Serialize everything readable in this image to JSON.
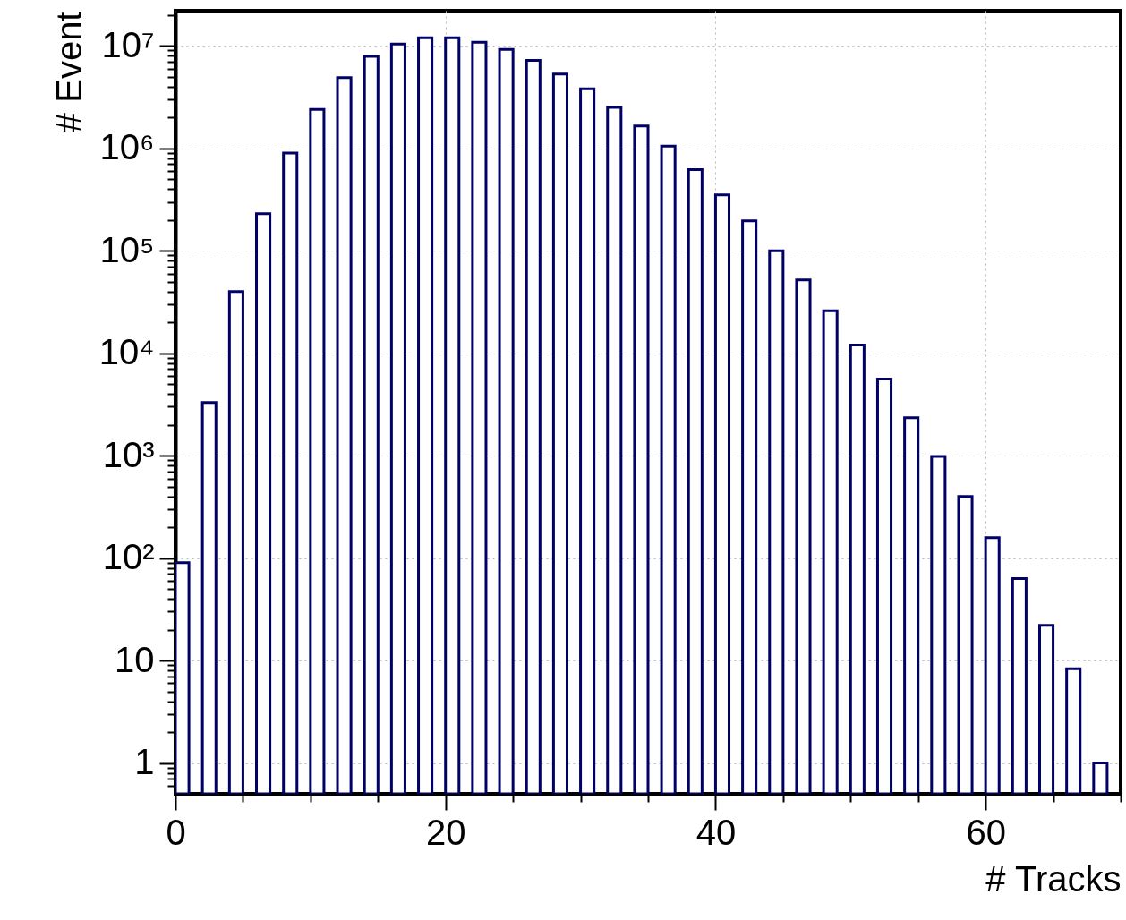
{
  "chart_data": {
    "type": "histogram",
    "xlabel": "# Tracks",
    "ylabel": "# Event",
    "color": "#000066",
    "bins": [
      0,
      1,
      2,
      3,
      4,
      5,
      6,
      7,
      8,
      9,
      10,
      11,
      12,
      13,
      14,
      15,
      16,
      17,
      18,
      19,
      20,
      21,
      22,
      23,
      24,
      25,
      26,
      27,
      28,
      29,
      30,
      31,
      32,
      33,
      34,
      35,
      36,
      37,
      38,
      39,
      40,
      41,
      42,
      43,
      44,
      45,
      46,
      47,
      48,
      49,
      50,
      51,
      52,
      53,
      54,
      55,
      56,
      57,
      58,
      59,
      60,
      61,
      62,
      63,
      64,
      65,
      66,
      67,
      68,
      69,
      70
    ],
    "values": [
      90,
      null,
      3300,
      null,
      40000,
      null,
      230000,
      null,
      900000,
      null,
      2400000,
      null,
      4900000,
      null,
      7900000,
      null,
      10400000,
      null,
      12000000,
      null,
      12000000,
      null,
      10800000,
      null,
      9200000,
      null,
      7200000,
      null,
      5300000,
      null,
      3800000,
      null,
      2500000,
      null,
      1650000,
      null,
      1050000,
      null,
      620000,
      null,
      350000,
      null,
      196000,
      null,
      100000,
      null,
      52000,
      null,
      26000,
      null,
      12000,
      null,
      5600,
      null,
      2350,
      null,
      980,
      null,
      400,
      null,
      158,
      null,
      63,
      null,
      22,
      null,
      8.3,
      null,
      1,
      null
    ],
    "xlim": [
      0,
      70
    ],
    "xticks": [
      0,
      {
        "value": 5,
        "label": null
      },
      {
        "value": 10,
        "label": null
      },
      {
        "value": 15,
        "label": null
      },
      20,
      {
        "value": 25,
        "label": null
      },
      {
        "value": 30,
        "label": null
      },
      {
        "value": 35,
        "label": null
      },
      40,
      {
        "value": 45,
        "label": null
      },
      {
        "value": 50,
        "label": null
      },
      {
        "value": 55,
        "label": null
      },
      60,
      {
        "value": 65,
        "label": null
      },
      {
        "value": 70,
        "label": null
      }
    ],
    "ylim": [
      0.5,
      22000000
    ],
    "yticks": [
      {
        "value": 0.6,
        "label": null
      },
      {
        "value": 0.7,
        "label": null
      },
      {
        "value": 0.8,
        "label": null
      },
      {
        "value": 0.9,
        "label": null
      },
      1,
      {
        "value": 2,
        "label": null
      },
      {
        "value": 3,
        "label": null
      },
      {
        "value": 4,
        "label": null
      },
      {
        "value": 5,
        "label": null
      },
      {
        "value": 6,
        "label": null
      },
      {
        "value": 7,
        "label": null
      },
      {
        "value": 8,
        "label": null
      },
      {
        "value": 9,
        "label": null
      },
      10,
      {
        "value": 20,
        "label": null
      },
      {
        "value": 30,
        "label": null
      },
      {
        "value": 40,
        "label": null
      },
      {
        "value": 50,
        "label": null
      },
      {
        "value": 60,
        "label": null
      },
      {
        "value": 70,
        "label": null
      },
      {
        "value": 80,
        "label": null
      },
      {
        "value": 90,
        "label": null
      },
      {
        "value": 100,
        "label": "10²"
      },
      {
        "value": 200,
        "label": null
      },
      {
        "value": 300,
        "label": null
      },
      {
        "value": 400,
        "label": null
      },
      {
        "value": 500,
        "label": null
      },
      {
        "value": 600,
        "label": null
      },
      {
        "value": 700,
        "label": null
      },
      {
        "value": 800,
        "label": null
      },
      {
        "value": 900,
        "label": null
      },
      {
        "value": 1000,
        "label": "10³"
      },
      {
        "value": 2000,
        "label": null
      },
      {
        "value": 3000,
        "label": null
      },
      {
        "value": 4000,
        "label": null
      },
      {
        "value": 5000,
        "label": null
      },
      {
        "value": 6000,
        "label": null
      },
      {
        "value": 7000,
        "label": null
      },
      {
        "value": 8000,
        "label": null
      },
      {
        "value": 9000,
        "label": null
      },
      {
        "value": 10000,
        "label": "10⁴"
      },
      {
        "value": 20000,
        "label": null
      },
      {
        "value": 30000,
        "label": null
      },
      {
        "value": 40000,
        "label": null
      },
      {
        "value": 50000,
        "label": null
      },
      {
        "value": 60000,
        "label": null
      },
      {
        "value": 70000,
        "label": null
      },
      {
        "value": 80000,
        "label": null
      },
      {
        "value": 90000,
        "label": null
      },
      {
        "value": 100000,
        "label": "10⁵"
      },
      {
        "value": 200000,
        "label": null
      },
      {
        "value": 300000,
        "label": null
      },
      {
        "value": 400000,
        "label": null
      },
      {
        "value": 500000,
        "label": null
      },
      {
        "value": 600000,
        "label": null
      },
      {
        "value": 700000,
        "label": null
      },
      {
        "value": 800000,
        "label": null
      },
      {
        "value": 900000,
        "label": null
      },
      {
        "value": 1000000,
        "label": "10⁶"
      },
      {
        "value": 2000000,
        "label": null
      },
      {
        "value": 3000000,
        "label": null
      },
      {
        "value": 4000000,
        "label": null
      },
      {
        "value": 5000000,
        "label": null
      },
      {
        "value": 6000000,
        "label": null
      },
      {
        "value": 7000000,
        "label": null
      },
      {
        "value": 8000000,
        "label": null
      },
      {
        "value": 9000000,
        "label": null
      },
      {
        "value": 10000000,
        "label": "10⁷"
      },
      {
        "value": 20000000,
        "label": null
      }
    ],
    "log": true,
    "grid": true
  }
}
